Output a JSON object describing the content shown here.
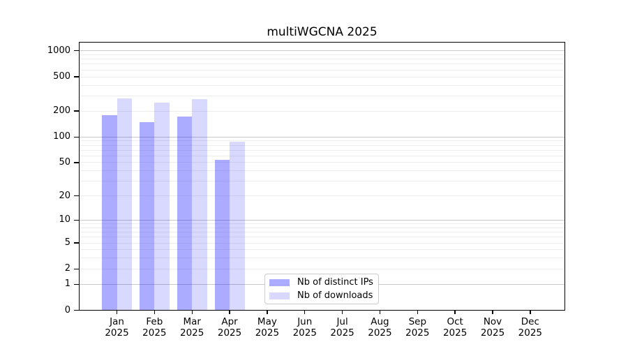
{
  "chart_data": {
    "type": "bar",
    "title": "multiWGCNA 2025",
    "x_months": [
      "Jan",
      "Feb",
      "Mar",
      "Apr",
      "May",
      "Jun",
      "Jul",
      "Aug",
      "Sep",
      "Oct",
      "Nov",
      "Dec"
    ],
    "x_year": "2025",
    "y_scale": "log1p",
    "y_tick_labels": [
      1000,
      500,
      200,
      100,
      50,
      20,
      10,
      5,
      2,
      1,
      0
    ],
    "y_major_gridlines": [
      1,
      10,
      100,
      1000
    ],
    "y_minor_gridlines": [
      2,
      3,
      4,
      5,
      6,
      7,
      8,
      9,
      20,
      30,
      40,
      50,
      60,
      70,
      80,
      90,
      200,
      300,
      400,
      500,
      600,
      700,
      800,
      900
    ],
    "ylim_top": 1280,
    "grid": true,
    "legend_position": "lower-center-inside",
    "series": [
      {
        "name": "Nb of distinct IPs",
        "color": "rgba(0,0,255,0.33)",
        "values": [
          181,
          148,
          172,
          54,
          null,
          null,
          null,
          null,
          null,
          null,
          null,
          null
        ]
      },
      {
        "name": "Nb of downloads",
        "color": "rgba(0,0,255,0.15)",
        "values": [
          280,
          249,
          276,
          88,
          null,
          null,
          null,
          null,
          null,
          null,
          null,
          null
        ]
      }
    ]
  }
}
